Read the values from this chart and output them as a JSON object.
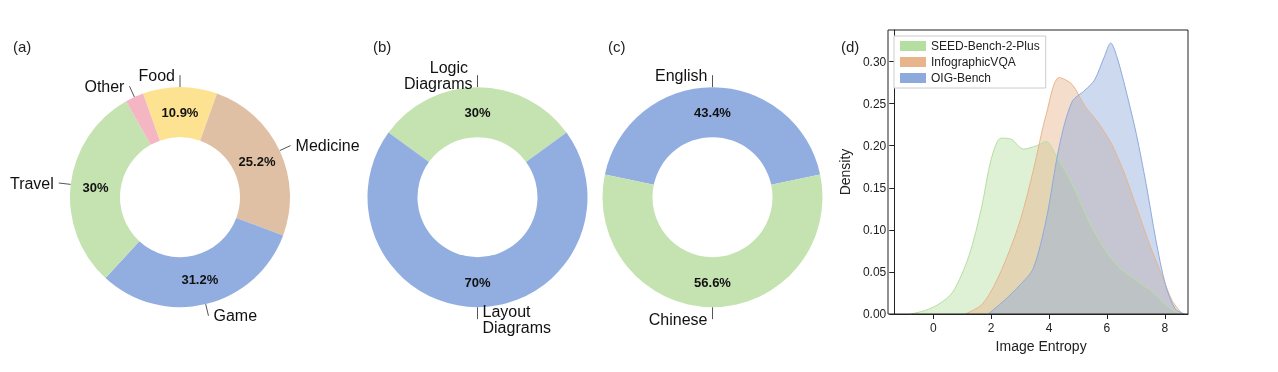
{
  "chart_data": [
    {
      "type": "donut",
      "title": "(a)",
      "categories": [
        "Food",
        "Medicine",
        "Game",
        "Travel",
        "Other"
      ],
      "values": [
        10.9,
        25.2,
        31.2,
        30,
        2.7
      ],
      "colors": [
        "#fde391",
        "#e0c0a4",
        "#92aee0",
        "#c5e3b0",
        "#f4b6c2"
      ],
      "value_labels": [
        "10.9%",
        "25.2%",
        "31.2%",
        "30%",
        null
      ]
    },
    {
      "type": "donut",
      "title": "(b)",
      "categories": [
        "Logic Diagrams",
        "Layout Diagrams"
      ],
      "values": [
        30,
        70
      ],
      "colors": [
        "#c5e3b0",
        "#92aee0"
      ],
      "value_labels": [
        "30%",
        "70%"
      ]
    },
    {
      "type": "donut",
      "title": "(c)",
      "categories": [
        "English",
        "Chinese"
      ],
      "values": [
        43.4,
        56.6
      ],
      "colors": [
        "#92aee0",
        "#c5e3b0"
      ],
      "value_labels": [
        "43.4%",
        "56.6%"
      ]
    },
    {
      "type": "area",
      "title": "(d)",
      "xlabel": "Image Entropy",
      "ylabel": "Density",
      "xlim": [
        -1.35,
        8.8
      ],
      "ylim": [
        0,
        0.3375
      ],
      "xticks": [
        0,
        2,
        4,
        6,
        8
      ],
      "yticks": [
        {
          "value": 0,
          "label": "0.00"
        },
        {
          "value": 0.05,
          "label": "0.05"
        },
        {
          "value": 0.1,
          "label": "0.10"
        },
        {
          "value": 0.15,
          "label": "0.15"
        },
        {
          "value": 0.2,
          "label": "0.20"
        },
        {
          "value": 0.25,
          "label": "0.25"
        },
        {
          "value": 0.3,
          "label": "0.30"
        }
      ],
      "grid": false,
      "legend": "top left",
      "series": [
        {
          "name": "SEED-Bench-2-Plus",
          "color": "#b5dfa0",
          "x": [
            -0.8,
            -0.3,
            0.2,
            0.67,
            1.23,
            1.67,
            2.0,
            2.34,
            2.67,
            3.12,
            3.57,
            3.9,
            4.23,
            4.79,
            5.35,
            5.9,
            6.46,
            7.02,
            7.58,
            8.02,
            8.47
          ],
          "values": [
            0,
            0.004,
            0.012,
            0.026,
            0.069,
            0.127,
            0.184,
            0.209,
            0.208,
            0.196,
            0.2,
            0.205,
            0.189,
            0.155,
            0.112,
            0.078,
            0.054,
            0.04,
            0.026,
            0.011,
            0.001
          ]
        },
        {
          "name": "InfographicVQA",
          "color": "#e8b48c",
          "x": [
            1.1,
            1.67,
            2.12,
            2.56,
            3.01,
            3.45,
            3.9,
            4.35,
            4.79,
            5.24,
            5.68,
            6.13,
            6.57,
            7.02,
            7.47,
            7.91,
            8.25,
            8.58
          ],
          "values": [
            0,
            0.011,
            0.035,
            0.069,
            0.112,
            0.17,
            0.237,
            0.281,
            0.273,
            0.247,
            0.228,
            0.204,
            0.17,
            0.127,
            0.083,
            0.045,
            0.016,
            0.001
          ]
        },
        {
          "name": "OIG-Bench",
          "color": "#8eaadc",
          "x": [
            1.9,
            2.45,
            3.01,
            3.45,
            3.9,
            4.35,
            4.79,
            5.24,
            5.57,
            5.9,
            6.13,
            6.35,
            6.69,
            7.02,
            7.35,
            7.69,
            8.02,
            8.36,
            8.69
          ],
          "values": [
            0,
            0.016,
            0.035,
            0.054,
            0.112,
            0.199,
            0.252,
            0.266,
            0.278,
            0.305,
            0.322,
            0.305,
            0.261,
            0.213,
            0.155,
            0.088,
            0.035,
            0.006,
            0
          ]
        }
      ]
    }
  ]
}
